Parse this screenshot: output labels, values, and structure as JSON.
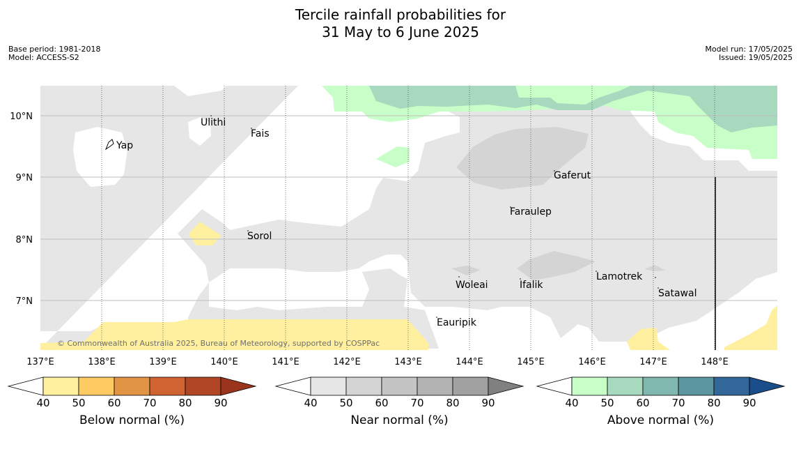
{
  "title": {
    "line1": "Tercile rainfall probabilities for",
    "line2": "31 May to 6 June 2025"
  },
  "info_left": {
    "base_period": "Base period: 1981-2018",
    "model": "Model: ACCESS-S2"
  },
  "info_right": {
    "model_run": "Model run: 17/05/2025",
    "issued": "Issued: 19/05/2025"
  },
  "map": {
    "lon_labels": [
      "137°E",
      "138°E",
      "139°E",
      "140°E",
      "141°E",
      "142°E",
      "143°E",
      "144°E",
      "145°E",
      "146°E",
      "147°E",
      "148°E"
    ],
    "lat_labels": [
      "10°N",
      "9°N",
      "8°N",
      "7°N"
    ],
    "places": [
      "Ulithi",
      "Fais",
      "Yap",
      "Gaferut",
      "Faraulep",
      "Sorol",
      "Woleai",
      "Ifalik",
      "Lamotrek",
      "Satawal",
      "Eauripik"
    ],
    "credit": "© Commonwealth of Australia 2025, Bureau of Meteorology, supported by COSPPac"
  },
  "colorbars": [
    {
      "label": "Below normal (%)",
      "ticks": [
        "40",
        "50",
        "60",
        "70",
        "80",
        "90"
      ],
      "colors": [
        "#fff0a0",
        "#fecb63",
        "#e29445",
        "#cf6331",
        "#b04624",
        "#9a341c"
      ]
    },
    {
      "label": "Near normal (%)",
      "ticks": [
        "40",
        "50",
        "60",
        "70",
        "80",
        "90"
      ],
      "colors": [
        "#e6e6e6",
        "#d4d4d4",
        "#c4c4c4",
        "#b3b3b3",
        "#a1a1a1",
        "#808080"
      ]
    },
    {
      "label": "Above normal (%)",
      "ticks": [
        "40",
        "50",
        "60",
        "70",
        "80",
        "90"
      ],
      "colors": [
        "#c8fec8",
        "#a6d9bd",
        "#80b8b0",
        "#5a95a0",
        "#336699",
        "#1a4e8a"
      ]
    }
  ]
}
